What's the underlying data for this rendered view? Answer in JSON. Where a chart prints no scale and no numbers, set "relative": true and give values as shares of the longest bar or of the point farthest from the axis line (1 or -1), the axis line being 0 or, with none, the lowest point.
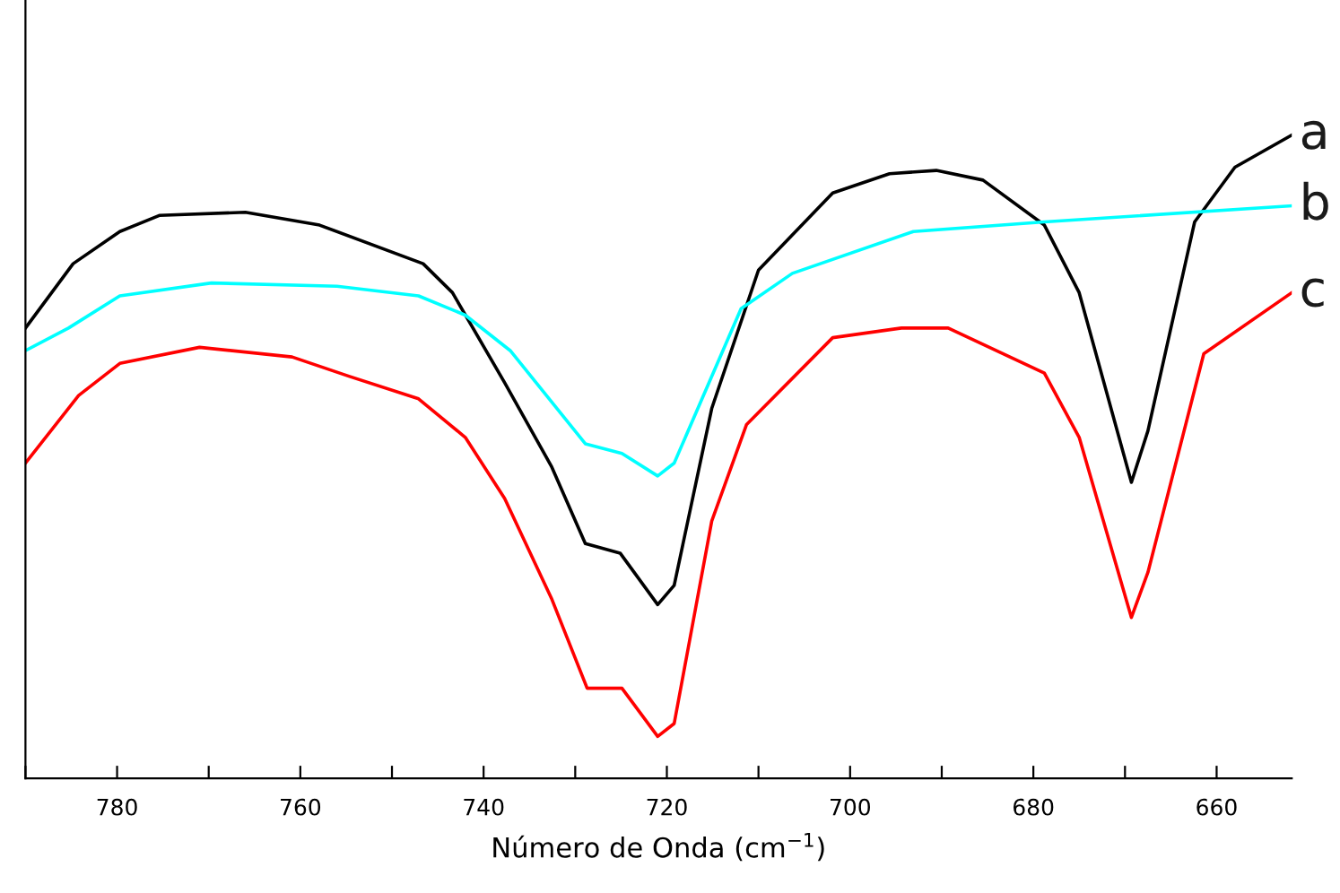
{
  "chart_data": {
    "type": "line",
    "xlabel": "Número de Onda (cm$^{−1}$)",
    "relative": true,
    "legend": false,
    "grid": false,
    "xlim": [
      790,
      651.8
    ],
    "xticks": [
      {
        "value": 790,
        "label": null
      },
      780,
      {
        "value": 770,
        "label": null
      },
      760,
      {
        "value": 750,
        "label": null
      },
      740,
      {
        "value": 730,
        "label": null
      },
      720,
      {
        "value": 710,
        "label": null
      },
      700,
      {
        "value": 690,
        "label": null
      },
      680,
      {
        "value": 670,
        "label": null
      },
      660
    ],
    "series": [
      {
        "name": "a",
        "color": "#000000",
        "x": [
          790,
          784.8,
          779.7,
          775.4,
          766,
          757.9,
          746.6,
          743.4,
          737.7,
          732.6,
          728.9,
          725.1,
          721,
          719.2,
          715.1,
          710,
          701.9,
          695.7,
          690.6,
          685.5,
          678.8,
          675,
          669.3,
          667.5,
          662.4,
          658,
          651.8
        ],
        "values": [
          0.7,
          0.8,
          0.85,
          0.875,
          0.88,
          0.86,
          0.8,
          0.755,
          0.615,
          0.485,
          0.365,
          0.35,
          0.27,
          0.3,
          0.575,
          0.79,
          0.91,
          0.94,
          0.945,
          0.93,
          0.86,
          0.755,
          0.46,
          0.54,
          0.865,
          0.95,
          1.0
        ]
      },
      {
        "name": "b",
        "color": "#00ffff",
        "x": [
          790,
          785.3,
          779.7,
          769.7,
          756,
          747.1,
          742,
          737.1,
          728.9,
          724.9,
          721,
          719.2,
          711.9,
          706.3,
          693.1,
          678.8,
          651.8
        ],
        "values": [
          0.665,
          0.7,
          0.75,
          0.77,
          0.765,
          0.75,
          0.72,
          0.665,
          0.52,
          0.505,
          0.47,
          0.49,
          0.73,
          0.785,
          0.85,
          0.865,
          0.89
        ]
      },
      {
        "name": "c",
        "color": "#ff0000",
        "x": [
          790,
          784.2,
          779.7,
          771,
          760.9,
          754.7,
          747.1,
          742,
          737.7,
          732.6,
          728.7,
          724.9,
          721,
          719.2,
          715.1,
          711.3,
          701.9,
          694.4,
          689.3,
          678.8,
          675,
          669.3,
          667.5,
          661.4,
          651.8
        ],
        "values": [
          0.49,
          0.595,
          0.645,
          0.67,
          0.655,
          0.625,
          0.59,
          0.53,
          0.435,
          0.28,
          0.14,
          0.14,
          0.065,
          0.085,
          0.4,
          0.55,
          0.685,
          0.7,
          0.7,
          0.63,
          0.53,
          0.25,
          0.32,
          0.66,
          0.755
        ]
      }
    ]
  }
}
